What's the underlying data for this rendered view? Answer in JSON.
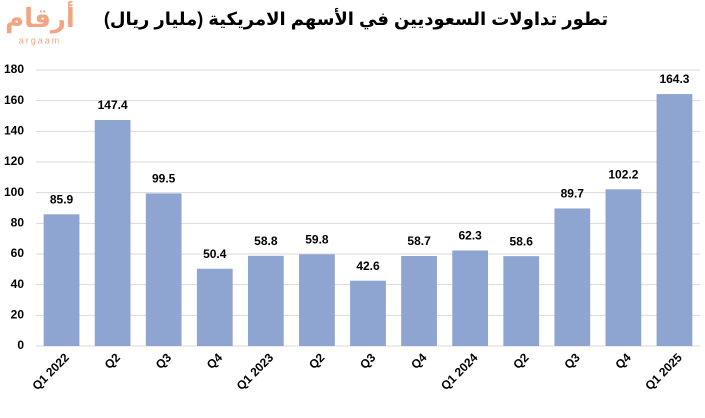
{
  "logo": {
    "arabic": "أرقام",
    "latin": "argaam"
  },
  "chart_data": {
    "type": "bar",
    "title": "تطور تداولات السعوديين في الأسهم الامريكية (مليار ريال)",
    "categories": [
      "Q1 2022",
      "Q2",
      "Q3",
      "Q4",
      "Q1 2023",
      "Q2",
      "Q3",
      "Q4",
      "Q1 2024",
      "Q2",
      "Q3",
      "Q4",
      "Q1 2025"
    ],
    "values": [
      85.9,
      147.4,
      99.5,
      50.4,
      58.8,
      59.8,
      42.6,
      58.7,
      62.3,
      58.6,
      89.7,
      102.2,
      164.3
    ],
    "color": "#8fa5d1",
    "ylim": [
      0,
      180
    ],
    "yticks": [
      0,
      20,
      40,
      60,
      80,
      100,
      120,
      140,
      160,
      180
    ],
    "grid": true
  }
}
